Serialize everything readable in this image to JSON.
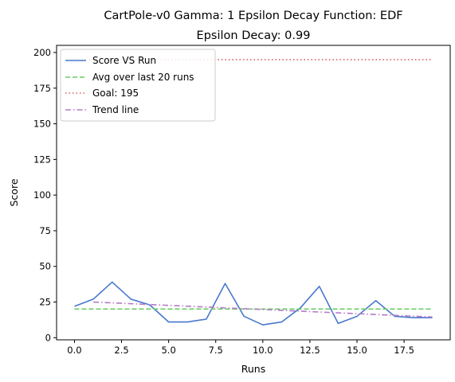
{
  "chart_data": {
    "type": "line",
    "title": "CartPole-v0 Gamma: 1 Epsilon Decay Function: EDF",
    "subtitle": "Epsilon Decay: 0.99",
    "xlabel": "Runs",
    "ylabel": "Score",
    "xlim": [
      -0.95,
      19.95
    ],
    "ylim": [
      -1.5,
      205
    ],
    "x_ticks": [
      0.0,
      2.5,
      5.0,
      7.5,
      10.0,
      12.5,
      15.0,
      17.5
    ],
    "x_tick_labels": [
      "0.0",
      "2.5",
      "5.0",
      "7.5",
      "10.0",
      "12.5",
      "15.0",
      "17.5"
    ],
    "y_ticks": [
      0,
      25,
      50,
      75,
      100,
      125,
      150,
      175,
      200
    ],
    "y_tick_labels": [
      "0",
      "25",
      "50",
      "75",
      "100",
      "125",
      "150",
      "175",
      "200"
    ],
    "grid": false,
    "legend_position": "top-left",
    "series": [
      {
        "name": "Score VS Run",
        "style": "solid",
        "color": "#4878cf",
        "x": [
          0,
          1,
          2,
          3,
          4,
          5,
          6,
          7,
          8,
          9,
          10,
          11,
          12,
          13,
          14,
          15,
          16,
          17,
          18,
          19
        ],
        "values": [
          22,
          27,
          39,
          27,
          23,
          11,
          11,
          13,
          38,
          15,
          9,
          11,
          21,
          36,
          10,
          15,
          26,
          15,
          14,
          14
        ]
      },
      {
        "name": "Avg over last 20 runs",
        "style": "dashed",
        "color": "#6acc65",
        "x": [
          0,
          19
        ],
        "values": [
          20.1,
          20.1
        ]
      },
      {
        "name": "Goal: 195",
        "style": "dotted",
        "color": "#d65f5f",
        "x": [
          0,
          19
        ],
        "values": [
          195,
          195
        ]
      },
      {
        "name": "Trend line",
        "style": "dashdot",
        "color": "#b47cc7",
        "x": [
          1,
          19
        ],
        "values": [
          25,
          14.5
        ]
      }
    ]
  }
}
